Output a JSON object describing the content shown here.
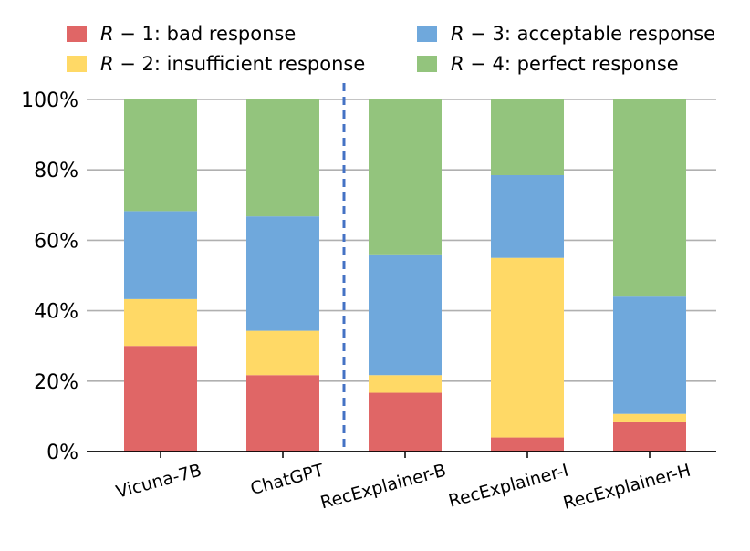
{
  "chart_data": {
    "type": "bar",
    "stacked": true,
    "percent": true,
    "categories": [
      "Vicuna-7B",
      "ChatGPT",
      "RecExplainer-B",
      "RecExplainer-I",
      "RecExplainer-H"
    ],
    "series": [
      {
        "name": "R − 1: bad response",
        "legend_var": "R",
        "legend_rest": " − 1: bad response",
        "color": "#e06666",
        "values": [
          30.0,
          21.7,
          16.7,
          4.0,
          8.3
        ]
      },
      {
        "name": "R − 2: insufficient response",
        "legend_var": "R",
        "legend_rest": " − 2: insufficient response",
        "color": "#ffd966",
        "values": [
          13.3,
          12.6,
          5.0,
          51.0,
          2.4
        ]
      },
      {
        "name": "R − 3: acceptable response",
        "legend_var": "R",
        "legend_rest": " − 3: acceptable response",
        "color": "#6fa8dc",
        "values": [
          25.0,
          32.5,
          34.3,
          23.5,
          33.3
        ]
      },
      {
        "name": "R − 4: perfect response",
        "legend_var": "R",
        "legend_rest": " − 4: perfect response",
        "color": "#93c47d",
        "values": [
          31.7,
          33.2,
          44.0,
          21.5,
          56.0
        ]
      }
    ],
    "ylim": [
      0,
      100
    ],
    "yticks": [
      0,
      20,
      40,
      60,
      80,
      100
    ],
    "ytick_labels": [
      "0%",
      "20%",
      "40%",
      "60%",
      "80%",
      "100%"
    ],
    "divider_after_category": 1,
    "grid": "horizontal",
    "legend_position": "top",
    "title": "",
    "xlabel": "",
    "ylabel": ""
  }
}
